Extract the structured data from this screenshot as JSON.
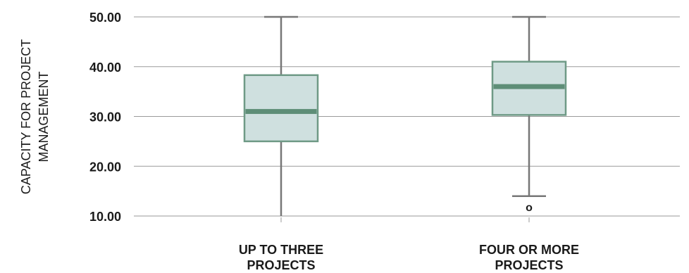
{
  "chart_data": {
    "type": "boxplot",
    "title": "",
    "ylabel": [
      "CAPACITY FOR PROJECT",
      "MANAGEMENT"
    ],
    "ylim": [
      10,
      50
    ],
    "yticks": [
      10,
      20,
      30,
      40,
      50
    ],
    "ytick_labels": [
      "10.00",
      "20.00",
      "30.00",
      "40.00",
      "50.00"
    ],
    "grid": true,
    "categories": [
      [
        "UP TO THREE",
        "PROJECTS"
      ],
      [
        "FOUR OR MORE",
        "PROJECTS"
      ]
    ],
    "boxes": [
      {
        "min": 10,
        "q1": 25,
        "median": 31,
        "q3": 38.3,
        "max": 50,
        "outliers": []
      },
      {
        "min": 14,
        "q1": 30.3,
        "median": 36,
        "q3": 41,
        "max": 50,
        "outliers": [
          12
        ]
      }
    ],
    "outlier_marker": "o",
    "colors": {
      "box_fill": "#cfe0df",
      "box_stroke": "#6f9a86",
      "median": "#5e8e77",
      "whisker": "#777777",
      "grid": "#9a9a9a",
      "text": "#1a1a1a"
    }
  }
}
